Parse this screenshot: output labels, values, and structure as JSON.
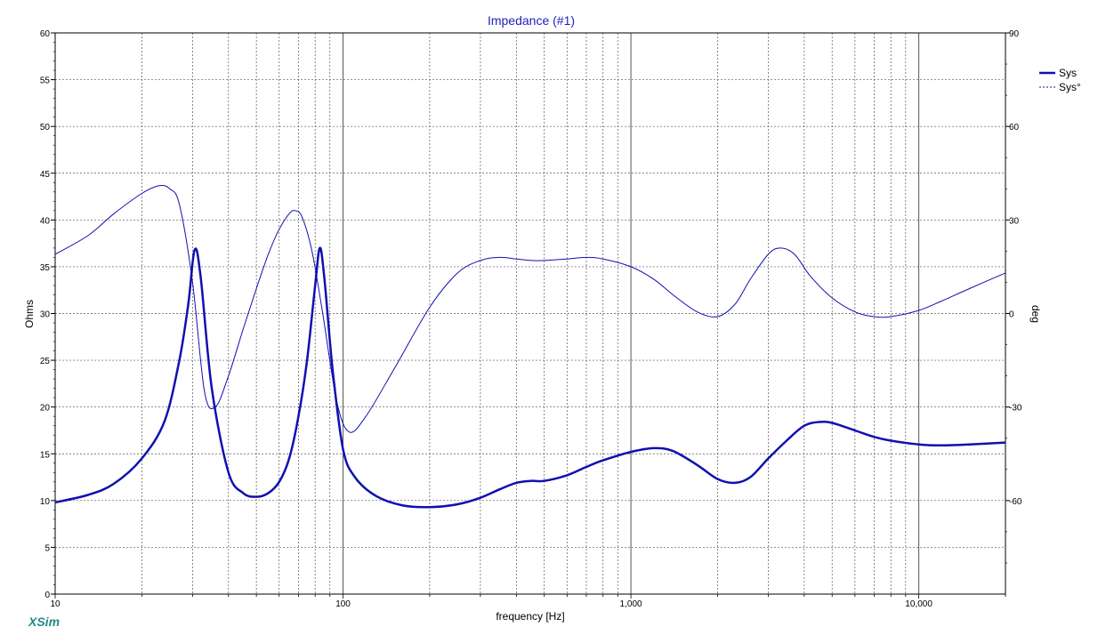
{
  "brand": "XSim",
  "chart_data": {
    "type": "line",
    "title": "Impedance (#1)",
    "xlabel": "frequency [Hz]",
    "ylabel": "Ohms",
    "y2label": "deg",
    "xscale": "log",
    "xlim": [
      10,
      20000
    ],
    "ylim": [
      0,
      60
    ],
    "y2lim": [
      -90,
      90
    ],
    "x_ticks": [
      10,
      100,
      1000,
      10000
    ],
    "x_tick_labels": [
      "10",
      "100",
      "1,000",
      "10,000"
    ],
    "y_ticks": [
      0,
      5,
      10,
      15,
      20,
      25,
      30,
      35,
      40,
      45,
      50,
      55,
      60
    ],
    "y_tick_labels": [
      "0",
      "5",
      "10",
      "15",
      "20",
      "25",
      "30",
      "35",
      "40",
      "45",
      "50",
      "55",
      "60"
    ],
    "y2_ticks": [
      -60,
      -30,
      0,
      30,
      60,
      90
    ],
    "y2_tick_labels": [
      "-60",
      "-30",
      "0",
      "30",
      "60",
      "90"
    ],
    "grid": true,
    "legend": "top-right",
    "colors": {
      "series": "#1010b0",
      "title": "#2020c0",
      "grid": "#555555"
    },
    "series": [
      {
        "name": "Sys",
        "axis": "left",
        "style": "solid-thick",
        "x": [
          10,
          13,
          16,
          20,
          24,
          27,
          29,
          30.5,
          32,
          35,
          40,
          45,
          50,
          55,
          60,
          65,
          70,
          75,
          80,
          83,
          86,
          92,
          100,
          110,
          130,
          160,
          200,
          250,
          300,
          350,
          400,
          450,
          500,
          600,
          700,
          800,
          1000,
          1200,
          1400,
          1700,
          2000,
          2300,
          2600,
          3000,
          3500,
          4000,
          4500,
          5000,
          6000,
          7000,
          8000,
          10000,
          12000,
          15000,
          20000
        ],
        "y": [
          9.8,
          10.6,
          11.8,
          14.5,
          18.5,
          25,
          31,
          36.8,
          34,
          22,
          13,
          10.8,
          10.4,
          10.8,
          12,
          14.5,
          19,
          25,
          33,
          37,
          34,
          24,
          15.5,
          12.5,
          10.5,
          9.5,
          9.3,
          9.6,
          10.3,
          11.2,
          11.9,
          12.1,
          12.1,
          12.7,
          13.6,
          14.3,
          15.2,
          15.6,
          15.3,
          13.8,
          12.3,
          11.9,
          12.5,
          14.5,
          16.5,
          18,
          18.4,
          18.3,
          17.5,
          16.8,
          16.4,
          16,
          15.9,
          16,
          16.2
        ]
      },
      {
        "name": "Sys°",
        "axis": "right",
        "style": "thin-dashed-where-steep",
        "x": [
          10,
          13,
          16,
          20,
          23,
          25,
          27,
          30,
          33,
          36,
          40,
          45,
          50,
          55,
          60,
          65,
          68,
          72,
          78,
          85,
          95,
          105,
          120,
          150,
          200,
          250,
          300,
          350,
          400,
          450,
          500,
          600,
          700,
          800,
          1000,
          1200,
          1400,
          1700,
          2000,
          2300,
          2600,
          3000,
          3300,
          3700,
          4200,
          5000,
          6000,
          7000,
          8000,
          10000,
          12000,
          15000,
          20000
        ],
        "y": [
          19,
          25,
          32,
          38.5,
          41,
          40,
          35,
          10,
          -25,
          -30,
          -20,
          -5,
          8,
          19,
          27,
          32,
          33,
          31,
          20,
          0,
          -28,
          -38,
          -33,
          -18,
          2,
          13,
          17,
          18,
          17.5,
          17,
          17,
          17.5,
          18,
          17.5,
          15,
          11,
          6,
          0.5,
          -1,
          3,
          11,
          19,
          21,
          19,
          12,
          5,
          0.5,
          -1,
          -1,
          1,
          4,
          8,
          13
        ]
      }
    ]
  }
}
